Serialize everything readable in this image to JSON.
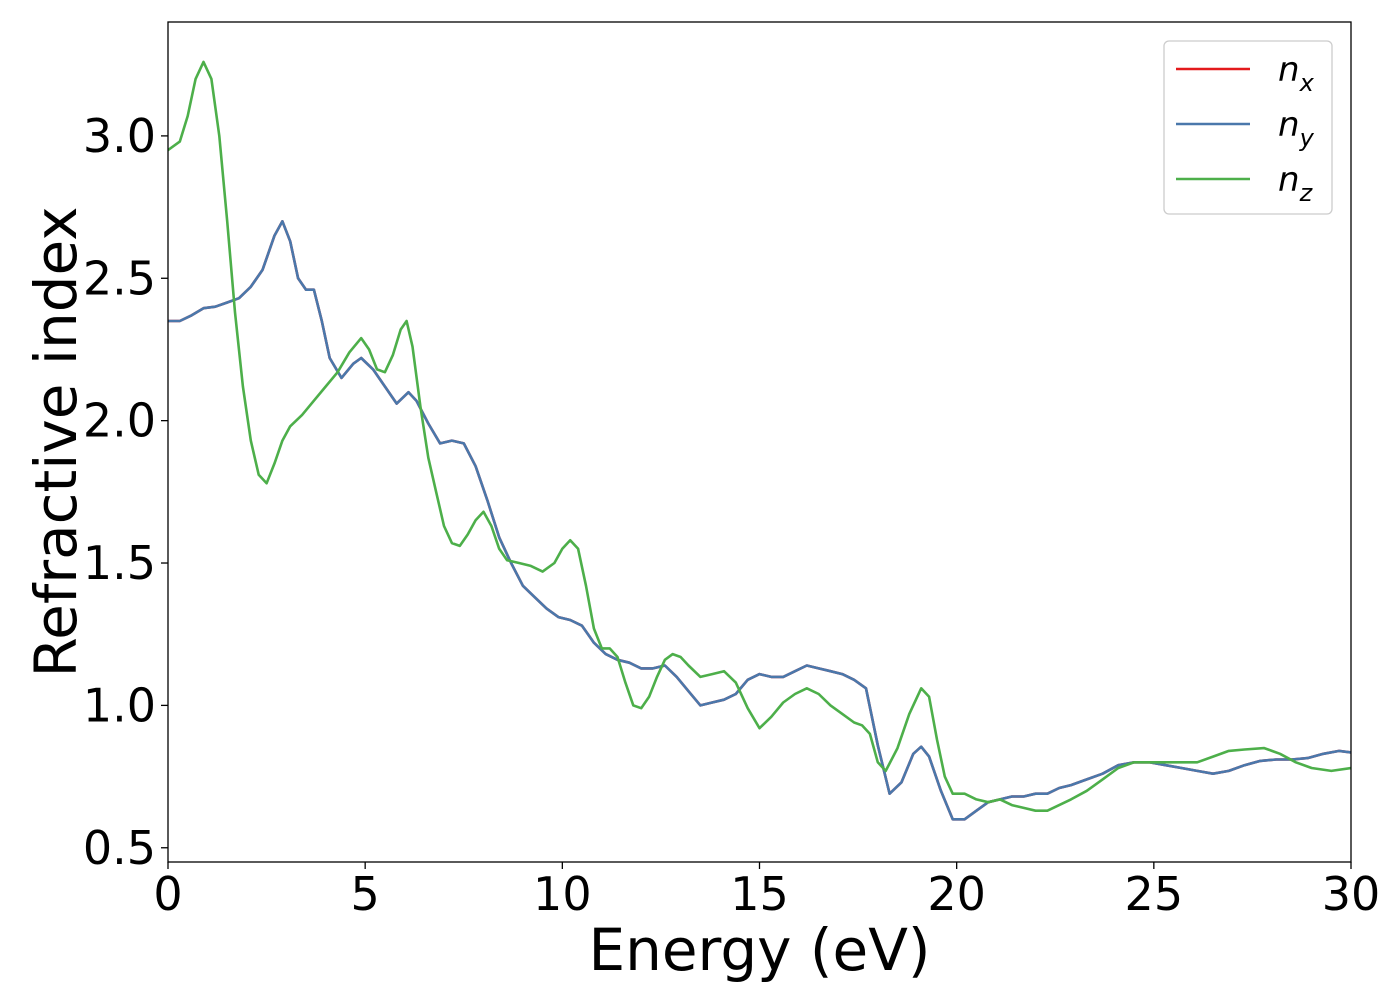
{
  "chart_data": {
    "type": "line",
    "xlabel": "Energy (eV)",
    "ylabel": "Refractive index",
    "xlim": [
      0,
      30
    ],
    "ylim": [
      0.45,
      3.4
    ],
    "xticks": [
      0,
      5,
      10,
      15,
      20,
      25,
      30
    ],
    "xtick_labels": [
      "0",
      "5",
      "10",
      "15",
      "20",
      "25",
      "30"
    ],
    "yticks": [
      0.5,
      1.0,
      1.5,
      2.0,
      2.5,
      3.0
    ],
    "ytick_labels": [
      "0.5",
      "1.0",
      "1.5",
      "2.0",
      "2.5",
      "3.0"
    ],
    "grid": false,
    "legend_position": "top-right",
    "series": [
      {
        "name": "n",
        "subscript": "x",
        "color": "#e31a1c",
        "points": [
          [
            0,
            2.35
          ],
          [
            0.3,
            2.35
          ],
          [
            0.6,
            2.37
          ],
          [
            0.9,
            2.395
          ],
          [
            1.2,
            2.4
          ],
          [
            1.5,
            2.415
          ],
          [
            1.8,
            2.43
          ],
          [
            2.1,
            2.47
          ],
          [
            2.4,
            2.53
          ],
          [
            2.7,
            2.65
          ],
          [
            2.9,
            2.7
          ],
          [
            3.1,
            2.63
          ],
          [
            3.3,
            2.5
          ],
          [
            3.5,
            2.46
          ],
          [
            3.7,
            2.46
          ],
          [
            3.9,
            2.35
          ],
          [
            4.1,
            2.22
          ],
          [
            4.4,
            2.15
          ],
          [
            4.7,
            2.2
          ],
          [
            4.9,
            2.22
          ],
          [
            5.2,
            2.18
          ],
          [
            5.5,
            2.12
          ],
          [
            5.8,
            2.06
          ],
          [
            6.1,
            2.1
          ],
          [
            6.3,
            2.07
          ],
          [
            6.6,
            1.99
          ],
          [
            6.9,
            1.92
          ],
          [
            7.2,
            1.93
          ],
          [
            7.5,
            1.92
          ],
          [
            7.8,
            1.84
          ],
          [
            8.1,
            1.72
          ],
          [
            8.4,
            1.59
          ],
          [
            8.7,
            1.5
          ],
          [
            9.0,
            1.42
          ],
          [
            9.3,
            1.38
          ],
          [
            9.6,
            1.34
          ],
          [
            9.9,
            1.31
          ],
          [
            10.2,
            1.3
          ],
          [
            10.5,
            1.28
          ],
          [
            10.8,
            1.22
          ],
          [
            11.1,
            1.18
          ],
          [
            11.4,
            1.16
          ],
          [
            11.7,
            1.15
          ],
          [
            12.0,
            1.13
          ],
          [
            12.3,
            1.13
          ],
          [
            12.6,
            1.14
          ],
          [
            12.9,
            1.1
          ],
          [
            13.2,
            1.05
          ],
          [
            13.5,
            1.0
          ],
          [
            13.8,
            1.01
          ],
          [
            14.1,
            1.02
          ],
          [
            14.4,
            1.04
          ],
          [
            14.7,
            1.09
          ],
          [
            15.0,
            1.11
          ],
          [
            15.3,
            1.1
          ],
          [
            15.6,
            1.1
          ],
          [
            15.9,
            1.12
          ],
          [
            16.2,
            1.14
          ],
          [
            16.5,
            1.13
          ],
          [
            16.8,
            1.12
          ],
          [
            17.1,
            1.11
          ],
          [
            17.4,
            1.09
          ],
          [
            17.7,
            1.06
          ],
          [
            18.0,
            0.86
          ],
          [
            18.3,
            0.69
          ],
          [
            18.6,
            0.73
          ],
          [
            18.9,
            0.83
          ],
          [
            19.1,
            0.855
          ],
          [
            19.3,
            0.82
          ],
          [
            19.6,
            0.7
          ],
          [
            19.9,
            0.6
          ],
          [
            20.2,
            0.6
          ],
          [
            20.5,
            0.63
          ],
          [
            20.8,
            0.66
          ],
          [
            21.1,
            0.67
          ],
          [
            21.4,
            0.68
          ],
          [
            21.7,
            0.68
          ],
          [
            22.0,
            0.69
          ],
          [
            22.3,
            0.69
          ],
          [
            22.6,
            0.71
          ],
          [
            22.9,
            0.72
          ],
          [
            23.3,
            0.74
          ],
          [
            23.7,
            0.76
          ],
          [
            24.1,
            0.79
          ],
          [
            24.5,
            0.8
          ],
          [
            24.9,
            0.8
          ],
          [
            25.3,
            0.79
          ],
          [
            25.7,
            0.78
          ],
          [
            26.1,
            0.77
          ],
          [
            26.5,
            0.76
          ],
          [
            26.9,
            0.77
          ],
          [
            27.3,
            0.79
          ],
          [
            27.7,
            0.805
          ],
          [
            28.1,
            0.81
          ],
          [
            28.5,
            0.81
          ],
          [
            28.9,
            0.815
          ],
          [
            29.3,
            0.83
          ],
          [
            29.7,
            0.84
          ],
          [
            30.0,
            0.835
          ]
        ]
      },
      {
        "name": "n",
        "subscript": "y",
        "color": "#4a78ab",
        "points": [
          [
            0,
            2.35
          ],
          [
            0.3,
            2.35
          ],
          [
            0.6,
            2.37
          ],
          [
            0.9,
            2.395
          ],
          [
            1.2,
            2.4
          ],
          [
            1.5,
            2.415
          ],
          [
            1.8,
            2.43
          ],
          [
            2.1,
            2.47
          ],
          [
            2.4,
            2.53
          ],
          [
            2.7,
            2.65
          ],
          [
            2.9,
            2.7
          ],
          [
            3.1,
            2.63
          ],
          [
            3.3,
            2.5
          ],
          [
            3.5,
            2.46
          ],
          [
            3.7,
            2.46
          ],
          [
            3.9,
            2.35
          ],
          [
            4.1,
            2.22
          ],
          [
            4.4,
            2.15
          ],
          [
            4.7,
            2.2
          ],
          [
            4.9,
            2.22
          ],
          [
            5.2,
            2.18
          ],
          [
            5.5,
            2.12
          ],
          [
            5.8,
            2.06
          ],
          [
            6.1,
            2.1
          ],
          [
            6.3,
            2.07
          ],
          [
            6.6,
            1.99
          ],
          [
            6.9,
            1.92
          ],
          [
            7.2,
            1.93
          ],
          [
            7.5,
            1.92
          ],
          [
            7.8,
            1.84
          ],
          [
            8.1,
            1.72
          ],
          [
            8.4,
            1.59
          ],
          [
            8.7,
            1.5
          ],
          [
            9.0,
            1.42
          ],
          [
            9.3,
            1.38
          ],
          [
            9.6,
            1.34
          ],
          [
            9.9,
            1.31
          ],
          [
            10.2,
            1.3
          ],
          [
            10.5,
            1.28
          ],
          [
            10.8,
            1.22
          ],
          [
            11.1,
            1.18
          ],
          [
            11.4,
            1.16
          ],
          [
            11.7,
            1.15
          ],
          [
            12.0,
            1.13
          ],
          [
            12.3,
            1.13
          ],
          [
            12.6,
            1.14
          ],
          [
            12.9,
            1.1
          ],
          [
            13.2,
            1.05
          ],
          [
            13.5,
            1.0
          ],
          [
            13.8,
            1.01
          ],
          [
            14.1,
            1.02
          ],
          [
            14.4,
            1.04
          ],
          [
            14.7,
            1.09
          ],
          [
            15.0,
            1.11
          ],
          [
            15.3,
            1.1
          ],
          [
            15.6,
            1.1
          ],
          [
            15.9,
            1.12
          ],
          [
            16.2,
            1.14
          ],
          [
            16.5,
            1.13
          ],
          [
            16.8,
            1.12
          ],
          [
            17.1,
            1.11
          ],
          [
            17.4,
            1.09
          ],
          [
            17.7,
            1.06
          ],
          [
            18.0,
            0.86
          ],
          [
            18.3,
            0.69
          ],
          [
            18.6,
            0.73
          ],
          [
            18.9,
            0.83
          ],
          [
            19.1,
            0.855
          ],
          [
            19.3,
            0.82
          ],
          [
            19.6,
            0.7
          ],
          [
            19.9,
            0.6
          ],
          [
            20.2,
            0.6
          ],
          [
            20.5,
            0.63
          ],
          [
            20.8,
            0.66
          ],
          [
            21.1,
            0.67
          ],
          [
            21.4,
            0.68
          ],
          [
            21.7,
            0.68
          ],
          [
            22.0,
            0.69
          ],
          [
            22.3,
            0.69
          ],
          [
            22.6,
            0.71
          ],
          [
            22.9,
            0.72
          ],
          [
            23.3,
            0.74
          ],
          [
            23.7,
            0.76
          ],
          [
            24.1,
            0.79
          ],
          [
            24.5,
            0.8
          ],
          [
            24.9,
            0.8
          ],
          [
            25.3,
            0.79
          ],
          [
            25.7,
            0.78
          ],
          [
            26.1,
            0.77
          ],
          [
            26.5,
            0.76
          ],
          [
            26.9,
            0.77
          ],
          [
            27.3,
            0.79
          ],
          [
            27.7,
            0.805
          ],
          [
            28.1,
            0.81
          ],
          [
            28.5,
            0.81
          ],
          [
            28.9,
            0.815
          ],
          [
            29.3,
            0.83
          ],
          [
            29.7,
            0.84
          ],
          [
            30.0,
            0.835
          ]
        ]
      },
      {
        "name": "n",
        "subscript": "z",
        "color": "#4daf4a",
        "points": [
          [
            0,
            2.95
          ],
          [
            0.3,
            2.98
          ],
          [
            0.5,
            3.07
          ],
          [
            0.7,
            3.2
          ],
          [
            0.9,
            3.26
          ],
          [
            1.1,
            3.2
          ],
          [
            1.3,
            3.0
          ],
          [
            1.5,
            2.7
          ],
          [
            1.7,
            2.38
          ],
          [
            1.9,
            2.12
          ],
          [
            2.1,
            1.93
          ],
          [
            2.3,
            1.81
          ],
          [
            2.5,
            1.78
          ],
          [
            2.7,
            1.85
          ],
          [
            2.9,
            1.93
          ],
          [
            3.1,
            1.98
          ],
          [
            3.4,
            2.02
          ],
          [
            3.7,
            2.07
          ],
          [
            4.0,
            2.12
          ],
          [
            4.3,
            2.17
          ],
          [
            4.6,
            2.24
          ],
          [
            4.9,
            2.29
          ],
          [
            5.1,
            2.25
          ],
          [
            5.3,
            2.18
          ],
          [
            5.5,
            2.17
          ],
          [
            5.7,
            2.23
          ],
          [
            5.9,
            2.32
          ],
          [
            6.05,
            2.35
          ],
          [
            6.2,
            2.26
          ],
          [
            6.4,
            2.05
          ],
          [
            6.6,
            1.87
          ],
          [
            6.8,
            1.75
          ],
          [
            7.0,
            1.63
          ],
          [
            7.2,
            1.57
          ],
          [
            7.4,
            1.56
          ],
          [
            7.6,
            1.6
          ],
          [
            7.8,
            1.65
          ],
          [
            8.0,
            1.68
          ],
          [
            8.2,
            1.63
          ],
          [
            8.4,
            1.55
          ],
          [
            8.6,
            1.51
          ],
          [
            8.9,
            1.5
          ],
          [
            9.2,
            1.49
          ],
          [
            9.5,
            1.47
          ],
          [
            9.8,
            1.5
          ],
          [
            10.0,
            1.55
          ],
          [
            10.2,
            1.58
          ],
          [
            10.4,
            1.55
          ],
          [
            10.6,
            1.42
          ],
          [
            10.8,
            1.27
          ],
          [
            11.0,
            1.2
          ],
          [
            11.2,
            1.2
          ],
          [
            11.4,
            1.17
          ],
          [
            11.6,
            1.08
          ],
          [
            11.8,
            1.0
          ],
          [
            12.0,
            0.99
          ],
          [
            12.2,
            1.03
          ],
          [
            12.4,
            1.1
          ],
          [
            12.6,
            1.16
          ],
          [
            12.8,
            1.18
          ],
          [
            13.0,
            1.17
          ],
          [
            13.2,
            1.14
          ],
          [
            13.5,
            1.1
          ],
          [
            13.8,
            1.11
          ],
          [
            14.1,
            1.12
          ],
          [
            14.4,
            1.08
          ],
          [
            14.7,
            0.99
          ],
          [
            15.0,
            0.92
          ],
          [
            15.3,
            0.96
          ],
          [
            15.6,
            1.01
          ],
          [
            15.9,
            1.04
          ],
          [
            16.2,
            1.06
          ],
          [
            16.5,
            1.04
          ],
          [
            16.8,
            1.0
          ],
          [
            17.1,
            0.97
          ],
          [
            17.4,
            0.94
          ],
          [
            17.6,
            0.93
          ],
          [
            17.8,
            0.9
          ],
          [
            18.0,
            0.8
          ],
          [
            18.2,
            0.77
          ],
          [
            18.5,
            0.85
          ],
          [
            18.8,
            0.97
          ],
          [
            19.1,
            1.06
          ],
          [
            19.3,
            1.03
          ],
          [
            19.5,
            0.88
          ],
          [
            19.7,
            0.75
          ],
          [
            19.9,
            0.69
          ],
          [
            20.2,
            0.69
          ],
          [
            20.5,
            0.67
          ],
          [
            20.8,
            0.66
          ],
          [
            21.1,
            0.67
          ],
          [
            21.4,
            0.65
          ],
          [
            21.7,
            0.64
          ],
          [
            22.0,
            0.63
          ],
          [
            22.3,
            0.63
          ],
          [
            22.6,
            0.65
          ],
          [
            22.9,
            0.67
          ],
          [
            23.3,
            0.7
          ],
          [
            23.7,
            0.74
          ],
          [
            24.1,
            0.78
          ],
          [
            24.5,
            0.8
          ],
          [
            24.9,
            0.8
          ],
          [
            25.3,
            0.8
          ],
          [
            25.7,
            0.8
          ],
          [
            26.1,
            0.8
          ],
          [
            26.5,
            0.82
          ],
          [
            26.9,
            0.84
          ],
          [
            27.3,
            0.845
          ],
          [
            27.8,
            0.85
          ],
          [
            28.2,
            0.83
          ],
          [
            28.6,
            0.8
          ],
          [
            29.0,
            0.78
          ],
          [
            29.5,
            0.77
          ],
          [
            30.0,
            0.78
          ]
        ]
      }
    ]
  }
}
